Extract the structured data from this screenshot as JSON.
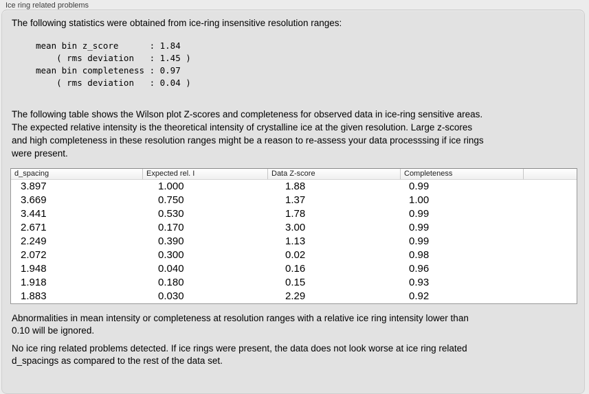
{
  "window": {
    "title": "Ice ring related problems"
  },
  "intro": "The following statistics were obtained from ice-ring insensitive resolution ranges:",
  "stats_block": "mean bin z_score      : 1.84\n    ( rms deviation   : 1.45 )\nmean bin completeness : 0.97\n    ( rms deviation   : 0.04 )",
  "description_lines": [
    "The following table shows the Wilson plot Z-scores and completeness for observed data in ice-ring sensitive areas.",
    "The expected relative intensity is the theoretical intensity of crystalline ice at the given resolution. Large z-scores",
    "and high completeness in these resolution ranges might be a reason to re-assess your data processsing if ice rings",
    "were present."
  ],
  "table": {
    "columns": [
      "d_spacing",
      "Expected rel. I",
      "Data Z-score",
      "Completeness"
    ],
    "rows": [
      [
        "3.897",
        "1.000",
        "1.88",
        "0.99"
      ],
      [
        "3.669",
        "0.750",
        "1.37",
        "1.00"
      ],
      [
        "3.441",
        "0.530",
        "1.78",
        "0.99"
      ],
      [
        "2.671",
        "0.170",
        "3.00",
        "0.99"
      ],
      [
        "2.249",
        "0.390",
        "1.13",
        "0.99"
      ],
      [
        "2.072",
        "0.300",
        "0.02",
        "0.98"
      ],
      [
        "1.948",
        "0.040",
        "0.16",
        "0.96"
      ],
      [
        "1.918",
        "0.180",
        "0.15",
        "0.93"
      ],
      [
        "1.883",
        "0.030",
        "2.29",
        "0.92"
      ]
    ]
  },
  "notes": {
    "ignore_note_lines": [
      "Abnormalities in mean intensity or completeness at resolution ranges with a relative ice ring intensity lower than",
      "0.10 will be ignored."
    ],
    "result_note_lines": [
      "No ice ring related problems detected. If ice rings were present, the data does not look worse at ice ring related",
      "d_spacings as compared to the rest of the data set."
    ]
  },
  "colors": {
    "outer_background": "#ececec",
    "panel_background": "#e2e2e2",
    "panel_border": "#cfcfcf",
    "table_border": "#979797",
    "table_header_background": "#f5f5f5",
    "text": "#000000"
  }
}
